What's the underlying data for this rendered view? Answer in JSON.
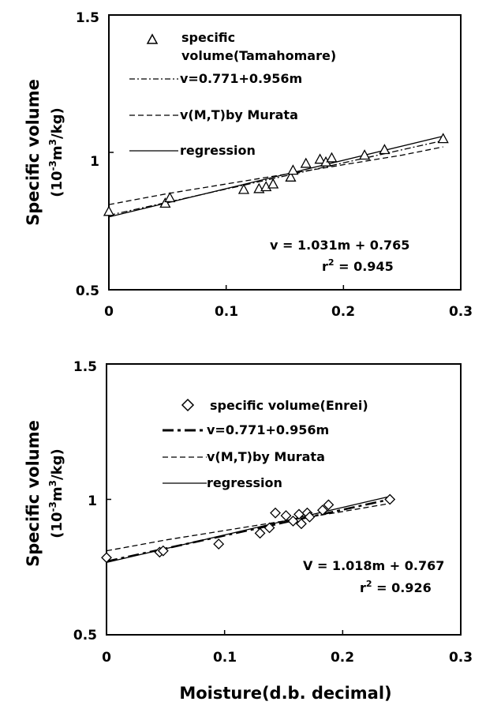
{
  "chart_data": [
    {
      "type": "scatter",
      "xlim": [
        0,
        0.3
      ],
      "ylim": [
        0.5,
        1.5
      ],
      "x_ticks": [
        "0",
        "0.1",
        "0.2",
        "0.3"
      ],
      "y_ticks": [
        "0.5",
        "1",
        "1.5"
      ],
      "ylabel": "Specific volume",
      "ylabel_unit": "(10-3m3/kg)",
      "legend_placement": "top-left",
      "grid": false,
      "legend": {
        "points": "specific volume(Tamahomare)",
        "dashdot": "v=0.771+0.956m",
        "dashed": "v(M,T)by Murata",
        "solid": "regression"
      },
      "annotation": {
        "eq": "v = 1.031m + 0.765",
        "r2": "r2 = 0.945"
      },
      "series": [
        {
          "name": "specific volume(Tamahomare)",
          "marker": "triangle",
          "x": [
            0.0,
            0.048,
            0.052,
            0.115,
            0.128,
            0.134,
            0.14,
            0.155,
            0.157,
            0.168,
            0.18,
            0.185,
            0.19,
            0.218,
            0.235,
            0.285
          ],
          "y": [
            0.785,
            0.815,
            0.835,
            0.865,
            0.868,
            0.875,
            0.885,
            0.91,
            0.935,
            0.96,
            0.975,
            0.965,
            0.98,
            0.99,
            1.01,
            1.05
          ]
        },
        {
          "name": "v=0.771+0.956m",
          "style": "dashdot",
          "x": [
            0,
            0.285
          ],
          "y": [
            0.771,
            1.043
          ]
        },
        {
          "name": "v(M,T)by Murata",
          "style": "dashed",
          "x": [
            0,
            0.05,
            0.1,
            0.15,
            0.2,
            0.25,
            0.285
          ],
          "y": [
            0.81,
            0.85,
            0.885,
            0.92,
            0.955,
            0.99,
            1.02
          ]
        },
        {
          "name": "regression",
          "style": "solid",
          "x": [
            0,
            0.285
          ],
          "y": [
            0.765,
            1.059
          ]
        }
      ]
    },
    {
      "type": "scatter",
      "xlim": [
        0,
        0.3
      ],
      "ylim": [
        0.5,
        1.5
      ],
      "x_ticks": [
        "0",
        "0.1",
        "0.2",
        "0.3"
      ],
      "y_ticks": [
        "0.5",
        "1",
        "1.5"
      ],
      "ylabel": "Specific volume",
      "ylabel_unit": "(10-3m3/kg)",
      "xlabel": "Moisture(d.b. decimal)",
      "legend_placement": "top-right",
      "grid": false,
      "legend": {
        "points": "specific volume(Enrei)",
        "dashdot": "v=0.771+0.956m",
        "dashed": "v(M,T)by Murata",
        "solid": "regression"
      },
      "annotation": {
        "eq": "V = 1.018m + 0.767",
        "r2": "r2 = 0.926"
      },
      "series": [
        {
          "name": "specific volume(Enrei)",
          "marker": "diamond",
          "x": [
            0.0,
            0.045,
            0.048,
            0.095,
            0.13,
            0.138,
            0.143,
            0.152,
            0.158,
            0.163,
            0.165,
            0.17,
            0.172,
            0.183,
            0.188,
            0.24
          ],
          "y": [
            0.785,
            0.805,
            0.81,
            0.835,
            0.875,
            0.895,
            0.95,
            0.94,
            0.92,
            0.945,
            0.91,
            0.95,
            0.935,
            0.96,
            0.98,
            1.0
          ]
        },
        {
          "name": "v=0.771+0.956m",
          "style": "dashdot",
          "x": [
            0,
            0.24
          ],
          "y": [
            0.771,
            1.0
          ]
        },
        {
          "name": "v(M,T)by Murata",
          "style": "dashed",
          "x": [
            0,
            0.05,
            0.1,
            0.15,
            0.2,
            0.24
          ],
          "y": [
            0.81,
            0.85,
            0.885,
            0.92,
            0.955,
            0.985
          ]
        },
        {
          "name": "regression",
          "style": "solid",
          "x": [
            0,
            0.24
          ],
          "y": [
            0.767,
            1.011
          ]
        }
      ]
    }
  ]
}
